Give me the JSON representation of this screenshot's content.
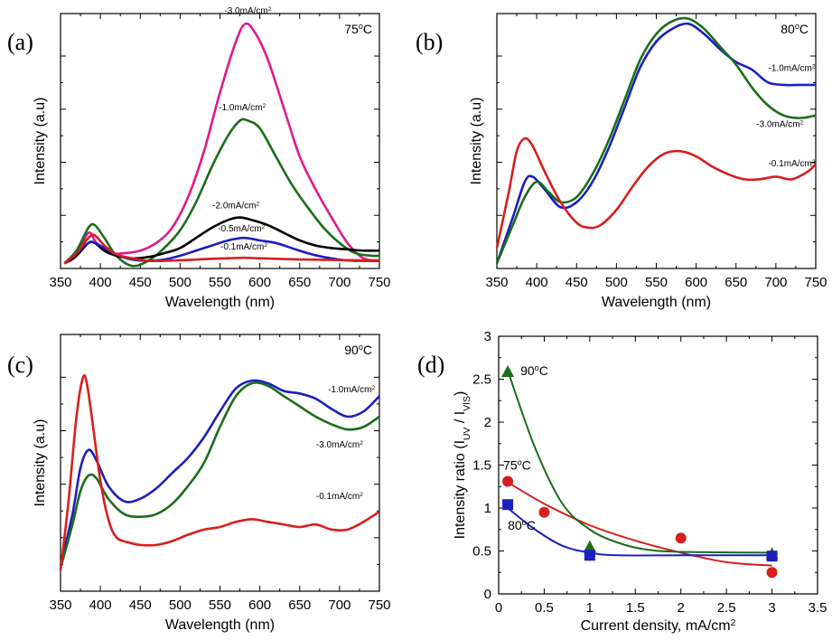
{
  "chart_data": [
    {
      "panel": "(a)",
      "type": "line",
      "temperature": "75",
      "temperature_unit": "°C",
      "xlabel": "Wavelength (nm)",
      "ylabel": "Intensity (a.u)",
      "xlim": [
        350,
        750
      ],
      "xticks": [
        "350",
        "400",
        "450",
        "500",
        "550",
        "600",
        "650",
        "700",
        "750"
      ],
      "ylim": [
        0,
        10
      ],
      "series": [
        {
          "name": "-3.0mA/cm",
          "color": "#e0198c",
          "x": [
            355,
            370,
            385,
            395,
            410,
            430,
            450,
            470,
            490,
            510,
            530,
            550,
            570,
            582,
            595,
            610,
            630,
            650,
            670,
            690,
            710,
            730,
            750
          ],
          "y": [
            0.2,
            0.5,
            1.4,
            1.0,
            0.6,
            0.6,
            0.7,
            1.0,
            1.6,
            2.8,
            4.6,
            6.9,
            8.9,
            9.6,
            9.2,
            8.2,
            6.3,
            4.4,
            3.1,
            2.0,
            1.0,
            0.4,
            0.3
          ]
        },
        {
          "name": "-1.0mA/cm",
          "color": "#1a6e1a",
          "x": [
            355,
            370,
            385,
            393,
            405,
            420,
            440,
            460,
            480,
            500,
            520,
            540,
            560,
            575,
            585,
            600,
            620,
            640,
            660,
            680,
            700,
            720,
            740,
            750
          ],
          "y": [
            0.2,
            0.7,
            1.6,
            1.7,
            1.2,
            0.5,
            0.1,
            0.3,
            0.8,
            1.5,
            2.6,
            4.0,
            5.2,
            5.8,
            5.8,
            5.5,
            4.4,
            3.3,
            2.4,
            1.6,
            1.0,
            0.6,
            0.5,
            0.5
          ]
        },
        {
          "name": "-2.0mA/cm",
          "color": "#000000",
          "x": [
            355,
            370,
            385,
            393,
            405,
            420,
            440,
            460,
            480,
            500,
            520,
            540,
            560,
            575,
            590,
            610,
            630,
            650,
            670,
            690,
            710,
            730,
            750
          ],
          "y": [
            0.2,
            0.5,
            1.0,
            1.0,
            0.7,
            0.5,
            0.4,
            0.45,
            0.6,
            0.8,
            1.2,
            1.6,
            1.9,
            2.0,
            1.9,
            1.7,
            1.4,
            1.1,
            0.9,
            0.8,
            0.75,
            0.7,
            0.7
          ]
        },
        {
          "name": "-0.5mA/cm",
          "color": "#1b1fbf",
          "x": [
            355,
            370,
            385,
            393,
            405,
            420,
            440,
            460,
            480,
            500,
            520,
            540,
            560,
            580,
            600,
            620,
            640,
            660,
            680,
            700,
            720,
            740,
            750
          ],
          "y": [
            0.2,
            0.6,
            1.0,
            1.0,
            0.8,
            0.55,
            0.35,
            0.3,
            0.35,
            0.5,
            0.7,
            0.9,
            1.1,
            1.2,
            1.1,
            1.0,
            0.8,
            0.6,
            0.45,
            0.35,
            0.3,
            0.3,
            0.3
          ]
        },
        {
          "name": "-0.1mA/cm",
          "color": "#d81e1e",
          "x": [
            355,
            370,
            385,
            393,
            405,
            420,
            440,
            460,
            480,
            500,
            520,
            540,
            560,
            580,
            600,
            620,
            640,
            660,
            680,
            700,
            720,
            740,
            750
          ],
          "y": [
            0.2,
            0.6,
            1.2,
            1.3,
            0.9,
            0.55,
            0.4,
            0.3,
            0.3,
            0.32,
            0.35,
            0.38,
            0.4,
            0.42,
            0.4,
            0.38,
            0.36,
            0.35,
            0.34,
            0.33,
            0.32,
            0.32,
            0.32
          ]
        }
      ]
    },
    {
      "panel": "(b)",
      "type": "line",
      "temperature": "80",
      "temperature_unit": "°C",
      "xlabel": "Wavelength (nm)",
      "ylabel": "Intensity (a.u)",
      "xlim": [
        350,
        750
      ],
      "xticks": [
        "350",
        "400",
        "450",
        "500",
        "550",
        "600",
        "650",
        "700",
        "750"
      ],
      "ylim": [
        0,
        10
      ],
      "series": [
        {
          "name": "-1.0mA/cm",
          "color": "#1b1fbf",
          "x": [
            350,
            370,
            385,
            395,
            410,
            430,
            450,
            470,
            490,
            510,
            530,
            550,
            570,
            590,
            610,
            630,
            650,
            670,
            690,
            710,
            730,
            750
          ],
          "y": [
            0.2,
            2.0,
            3.4,
            3.6,
            3.1,
            2.4,
            2.6,
            3.4,
            4.7,
            6.3,
            7.9,
            8.9,
            9.4,
            9.6,
            9.2,
            8.6,
            8.1,
            7.8,
            7.3,
            7.2,
            7.2,
            7.2
          ]
        },
        {
          "name": "-3.0mA/cm",
          "color": "#1a6e1a",
          "x": [
            350,
            370,
            385,
            400,
            415,
            430,
            450,
            470,
            490,
            510,
            530,
            550,
            570,
            590,
            610,
            630,
            650,
            670,
            690,
            710,
            730,
            750
          ],
          "y": [
            0.2,
            1.7,
            2.8,
            3.4,
            3.0,
            2.6,
            2.8,
            3.7,
            5.0,
            6.6,
            8.2,
            9.2,
            9.7,
            9.8,
            9.4,
            8.7,
            8.0,
            7.1,
            6.4,
            6.0,
            5.9,
            6.0
          ]
        },
        {
          "name": "-0.1mA/cm",
          "color": "#d81e1e",
          "x": [
            350,
            365,
            375,
            385,
            395,
            410,
            430,
            450,
            465,
            480,
            500,
            520,
            540,
            560,
            580,
            600,
            620,
            640,
            660,
            680,
            700,
            720,
            740,
            750
          ],
          "y": [
            0.8,
            3.0,
            4.6,
            5.1,
            4.8,
            3.8,
            2.6,
            1.8,
            1.6,
            1.7,
            2.3,
            3.2,
            4.0,
            4.5,
            4.6,
            4.4,
            4.0,
            3.7,
            3.5,
            3.5,
            3.6,
            3.5,
            3.8,
            4.1
          ]
        }
      ]
    },
    {
      "panel": "(c)",
      "type": "line",
      "temperature": "90",
      "temperature_unit": "°C",
      "xlabel": "Wavelength (nm)",
      "ylabel": "Intensity (a.u)",
      "xlim": [
        350,
        750
      ],
      "xticks": [
        "350",
        "400",
        "450",
        "500",
        "550",
        "600",
        "650",
        "700",
        "750"
      ],
      "ylim": [
        0,
        10
      ],
      "series": [
        {
          "name": "-1.0mA/cm",
          "color": "#1b1fbf",
          "x": [
            350,
            365,
            375,
            385,
            395,
            410,
            430,
            450,
            470,
            490,
            510,
            530,
            550,
            570,
            590,
            610,
            630,
            650,
            670,
            690,
            710,
            730,
            750
          ],
          "y": [
            1.0,
            3.0,
            4.8,
            5.5,
            5.1,
            4.1,
            3.5,
            3.6,
            4.0,
            4.6,
            5.2,
            6.0,
            7.0,
            7.9,
            8.2,
            8.1,
            7.8,
            7.7,
            7.5,
            7.1,
            6.8,
            7.0,
            7.6
          ]
        },
        {
          "name": "-3.0mA/cm",
          "color": "#1a6e1a",
          "x": [
            350,
            365,
            375,
            385,
            395,
            410,
            430,
            450,
            470,
            490,
            510,
            530,
            550,
            570,
            590,
            610,
            630,
            650,
            670,
            690,
            710,
            730,
            750
          ],
          "y": [
            0.9,
            2.6,
            3.9,
            4.5,
            4.4,
            3.6,
            3.0,
            2.9,
            3.0,
            3.4,
            4.1,
            5.0,
            6.4,
            7.6,
            8.1,
            8.0,
            7.6,
            7.2,
            6.8,
            6.5,
            6.3,
            6.4,
            6.8
          ]
        },
        {
          "name": "-0.1mA/cm",
          "color": "#d81e1e",
          "x": [
            350,
            360,
            370,
            378,
            383,
            390,
            400,
            410,
            420,
            435,
            450,
            470,
            490,
            510,
            530,
            550,
            570,
            590,
            610,
            630,
            650,
            670,
            690,
            710,
            730,
            750
          ],
          "y": [
            0.8,
            3.5,
            6.8,
            8.3,
            8.1,
            6.6,
            4.3,
            2.8,
            2.1,
            1.9,
            1.8,
            1.8,
            1.95,
            2.2,
            2.4,
            2.5,
            2.7,
            2.8,
            2.7,
            2.6,
            2.5,
            2.6,
            2.4,
            2.4,
            2.7,
            3.1
          ]
        }
      ]
    },
    {
      "panel": "(d)",
      "type": "scatter",
      "xlabel": "Current density, mA/cm",
      "xlabel_sup": "2",
      "ylabel": "Intensity ratio (I",
      "ylabel_sub1": "UV",
      "ylabel_mid": " / I",
      "ylabel_sub2": "VIS",
      "ylabel_end": ")",
      "xlim": [
        0,
        3.5
      ],
      "ylim": [
        0,
        3
      ],
      "xticks": [
        "0",
        "0.5",
        "1",
        "1.5",
        "2",
        "2.5",
        "3",
        "3.5"
      ],
      "yticks": [
        "0",
        "0.5",
        "1",
        "1.5",
        "2",
        "2.5",
        "3"
      ],
      "series": [
        {
          "name": "75",
          "unit": "°C",
          "color": "#d81e1e",
          "marker": "circle",
          "x": [
            0.1,
            0.5,
            1.0,
            2.0,
            3.0
          ],
          "y": [
            1.31,
            0.95,
            0.45,
            0.65,
            0.25
          ],
          "fit": [
            [
              0.1,
              1.3
            ],
            [
              0.5,
              1.05
            ],
            [
              1.0,
              0.8
            ],
            [
              1.5,
              0.62
            ],
            [
              2.0,
              0.48
            ],
            [
              2.5,
              0.37
            ],
            [
              3.0,
              0.33
            ]
          ]
        },
        {
          "name": "90",
          "unit": "°C",
          "color": "#1a6e1a",
          "marker": "triangle",
          "x": [
            0.1,
            1.0,
            3.0
          ],
          "y": [
            2.59,
            0.55,
            0.47
          ],
          "fit": [
            [
              0.1,
              2.6
            ],
            [
              0.4,
              1.7
            ],
            [
              0.7,
              1.05
            ],
            [
              1.0,
              0.75
            ],
            [
              1.3,
              0.6
            ],
            [
              1.6,
              0.52
            ],
            [
              2.0,
              0.49
            ],
            [
              3.0,
              0.48
            ]
          ]
        },
        {
          "name": "80",
          "unit": "°C",
          "color": "#1b1fbf",
          "marker": "square",
          "x": [
            0.1,
            1.0,
            3.0
          ],
          "y": [
            1.04,
            0.45,
            0.44
          ],
          "fit": [
            [
              0.1,
              1.0
            ],
            [
              0.4,
              0.75
            ],
            [
              0.7,
              0.56
            ],
            [
              1.0,
              0.48
            ],
            [
              1.3,
              0.45
            ],
            [
              2.0,
              0.45
            ],
            [
              3.0,
              0.45
            ]
          ]
        }
      ]
    }
  ],
  "annotations": {
    "sup2": "2",
    "deg": "o",
    "temp_c": "C"
  }
}
